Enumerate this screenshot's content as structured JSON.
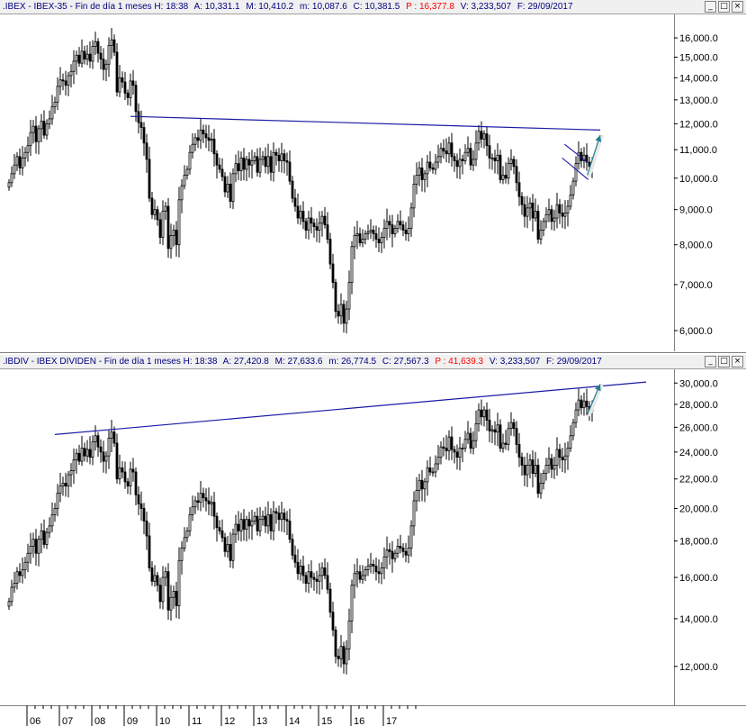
{
  "window_buttons": [
    "_",
    "□",
    "×"
  ],
  "chart_data": [
    {
      "type": "candlestick",
      "header": {
        "symbol": ".IBEX - IBEX-35 - Fin de día 1 meses",
        "H_label": "H:",
        "H": "18:38",
        "A_label": "A:",
        "A": "10,331.1",
        "M_label": "M:",
        "M": "10,410.2",
        "m_label": "m:",
        "m": "10,087.6",
        "C_label": "C:",
        "C": "10,381.5",
        "P_label": "P :",
        "P": "16,377.8",
        "V_label": "V:",
        "V": "3,233,507",
        "F_label": "F:",
        "F": "29/09/2017"
      },
      "scale": "log",
      "ylim": [
        5700,
        17000
      ],
      "yticks": [
        "6,000.0",
        "7,000.0",
        "8,000.0",
        "9,000.0",
        "10,000.0",
        "11,000.0",
        "12,000.0",
        "13,000.0",
        "14,000.0",
        "15,000.0",
        "16,000.0"
      ],
      "ytick_values": [
        6000,
        7000,
        8000,
        9000,
        10000,
        11000,
        12000,
        13000,
        14000,
        15000,
        16000
      ],
      "closes": [
        9850,
        10150,
        10450,
        10750,
        10350,
        10700,
        10900,
        11150,
        11650,
        11900,
        11300,
        11800,
        12100,
        11550,
        12000,
        12200,
        12700,
        12900,
        13600,
        13900,
        13850,
        13650,
        14100,
        14300,
        14800,
        15100,
        14700,
        15300,
        14900,
        15150,
        14800,
        15550,
        15800,
        15200,
        14900,
        14400,
        14650,
        15600,
        15900,
        15250,
        13350,
        14000,
        13800,
        13300,
        13100,
        13850,
        13650,
        12500,
        12050,
        11850,
        11250,
        10650,
        9350,
        8850,
        9000,
        8700,
        8200,
        8950,
        9100,
        7900,
        8250,
        8400,
        8000,
        9300,
        9750,
        10100,
        10300,
        10900,
        11200,
        11450,
        11350,
        11750,
        11600,
        11450,
        11350,
        11400,
        10850,
        10450,
        10300,
        10050,
        9550,
        9800,
        9250,
        10150,
        10500,
        10250,
        10700,
        10300,
        10650,
        10450,
        10600,
        10750,
        10200,
        10650,
        10750,
        10400,
        10750,
        10200,
        10900,
        10800,
        10600,
        10850,
        10600,
        10550,
        9900,
        9350,
        9100,
        8750,
        8950,
        8650,
        8400,
        8750,
        8600,
        8500,
        8400,
        8600,
        8800,
        8550,
        8150,
        7500,
        7050,
        6400,
        6300,
        6550,
        6150,
        6450,
        7050,
        7950,
        8250,
        8300,
        8050,
        8150,
        8300,
        8350,
        8400,
        8300,
        8150,
        8050,
        8200,
        8450,
        8650,
        8550,
        8300,
        8450,
        8650,
        8550,
        8400,
        8300,
        8450,
        9050,
        9800,
        10100,
        10350,
        9950,
        10150,
        10550,
        10350,
        10300,
        10550,
        10750,
        11050,
        10950,
        10850,
        11250,
        10750,
        10600,
        10400,
        10650,
        10600,
        10900,
        11050,
        10450,
        10650,
        11250,
        11700,
        11400,
        11600,
        11150,
        10700,
        10700,
        10600,
        10800,
        9950,
        10100,
        10000,
        10500,
        10650,
        10400,
        9850,
        9400,
        9150,
        8800,
        9050,
        9200,
        8750,
        8950,
        8150,
        8400,
        8650,
        8850,
        9000,
        8650,
        8750,
        9150,
        8900,
        8800,
        8900,
        9100,
        9450,
        9900,
        10500,
        10900,
        10600,
        10800,
        10550,
        10400,
        10350
      ],
      "annotations": {
        "resistance_line": {
          "p1": [
            45.0,
            12300
          ],
          "p2": [
            219.0,
            11750
          ]
        },
        "flag_pattern": {
          "upper": [
            [
              205.8,
              11200
            ],
            [
              214.2,
              10550
            ]
          ],
          "lower": [
            [
              204.9,
              10700
            ],
            [
              214.6,
              9950
            ]
          ]
        },
        "arrow": {
          "from": [
            214.2,
            10100
          ],
          "to": [
            219.0,
            11550
          ]
        }
      }
    },
    {
      "type": "candlestick",
      "header": {
        "symbol": ".IBDIV - IBEX DIVIDEN - Fin de día 1 meses",
        "H_label": "H:",
        "H": "18:38",
        "A_label": "A:",
        "A": "27,420.8",
        "M_label": "M:",
        "M": "27,633.6",
        "m_label": "m:",
        "m": "26,774.5",
        "C_label": "C:",
        "C": "27,567.3",
        "P_label": "P :",
        "P": "41,639.3",
        "V_label": "V:",
        "V": "3,233,507",
        "F_label": "F:",
        "F": "29/09/2017"
      },
      "scale": "log",
      "ylim": [
        10800,
        31000
      ],
      "yticks": [
        "12,000.0",
        "14,000.0",
        "16,000.0",
        "18,000.0",
        "20,000.0",
        "22,000.0",
        "24,000.0",
        "26,000.0",
        "28,000.0",
        "30,000.0"
      ],
      "ytick_values": [
        12000,
        14000,
        16000,
        18000,
        20000,
        22000,
        24000,
        26000,
        28000,
        30000
      ],
      "closes": [
        14800,
        15500,
        15700,
        16300,
        16100,
        16400,
        16800,
        17300,
        17700,
        18100,
        17300,
        18100,
        18600,
        17800,
        18500,
        18900,
        19600,
        20000,
        21000,
        21500,
        21700,
        21500,
        22300,
        22600,
        23400,
        23900,
        23300,
        24300,
        23700,
        24200,
        23600,
        24800,
        25300,
        24400,
        24000,
        23300,
        23700,
        25100,
        25600,
        24700,
        22000,
        22800,
        22500,
        21800,
        21500,
        22700,
        22500,
        20900,
        20300,
        20000,
        19200,
        18300,
        16500,
        15800,
        16100,
        15600,
        14800,
        16000,
        16300,
        14400,
        15000,
        15300,
        14600,
        16900,
        17600,
        18200,
        18600,
        19600,
        20100,
        20500,
        20400,
        21000,
        20700,
        20500,
        20300,
        20400,
        19500,
        18800,
        18600,
        18200,
        17400,
        17800,
        16900,
        18400,
        19000,
        18600,
        19300,
        18700,
        19300,
        18900,
        19200,
        19500,
        18600,
        19300,
        19500,
        18900,
        19600,
        18600,
        19800,
        19700,
        19300,
        19700,
        19300,
        19200,
        18100,
        17200,
        16800,
        16200,
        16600,
        16100,
        15700,
        16300,
        16000,
        15900,
        15800,
        16100,
        16500,
        16100,
        15400,
        14300,
        13500,
        12400,
        12300,
        12800,
        12100,
        12700,
        13900,
        15600,
        16200,
        16300,
        15900,
        16100,
        16400,
        16600,
        16700,
        16600,
        16300,
        16200,
        16500,
        17100,
        17500,
        17400,
        17000,
        17300,
        17700,
        17600,
        17400,
        17200,
        17600,
        18900,
        20500,
        21200,
        21900,
        21300,
        21800,
        22800,
        22500,
        22500,
        23100,
        23600,
        24400,
        24300,
        24100,
        25200,
        24200,
        24000,
        23600,
        24300,
        24300,
        25000,
        25500,
        24300,
        24900,
        26300,
        27500,
        26900,
        27500,
        26600,
        25700,
        25800,
        25600,
        26200,
        24300,
        24700,
        24600,
        25900,
        26400,
        25900,
        24600,
        23600,
        23000,
        22300,
        23000,
        23400,
        22400,
        23000,
        21000,
        21700,
        22400,
        23000,
        23500,
        22700,
        23000,
        24200,
        23600,
        23400,
        23700,
        24300,
        25300,
        26400,
        27500,
        28400,
        27700,
        28300,
        27800,
        27400,
        27500
      ],
      "annotations": {
        "resistance_line": {
          "p1": [
            17.0,
            25400
          ],
          "p2": [
            236.0,
            30100
          ]
        },
        "arrow": {
          "from": [
            214.2,
            27100
          ],
          "to": [
            219.0,
            29900
          ]
        }
      }
    }
  ],
  "xaxis": {
    "labels": [
      "06",
      "07",
      "08",
      "09",
      "10",
      "11",
      "12",
      "13",
      "14",
      "15",
      "16",
      "17"
    ],
    "label_index": [
      0,
      12,
      24,
      36,
      48,
      60,
      72,
      84,
      96,
      108,
      120,
      132
    ]
  }
}
